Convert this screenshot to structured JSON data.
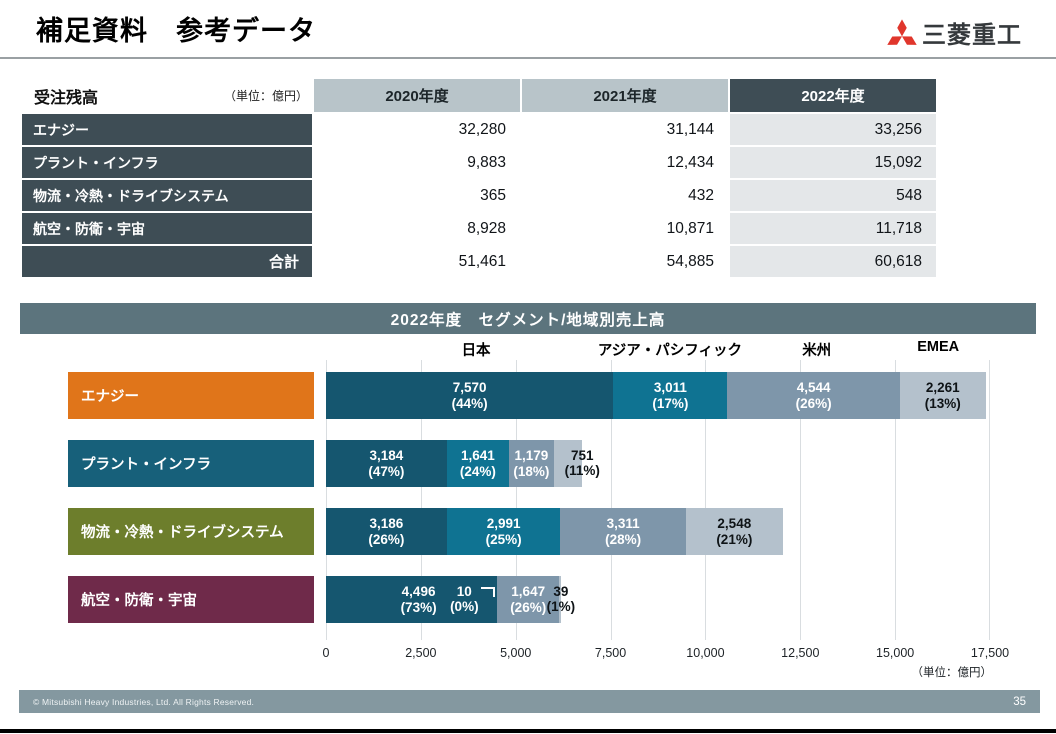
{
  "page": {
    "title": "補足資料　参考データ",
    "footer_copyright": "© Mitsubishi Heavy Industries, Ltd.  All Rights Reserved.",
    "page_number": "35"
  },
  "logo": {
    "brand_text": "三菱重工",
    "mark_color": "#e0362c"
  },
  "table": {
    "title": "受注残高",
    "unit_note": "（単位：億円）",
    "col_headers": [
      "2020年度",
      "2021年度",
      "2022年度"
    ],
    "rows": [
      {
        "label": "エナジー",
        "values": [
          "32,280",
          "31,144",
          "33,256"
        ]
      },
      {
        "label": "プラント・インフラ",
        "values": [
          "9,883",
          "12,434",
          "15,092"
        ]
      },
      {
        "label": "物流・冷熱・ドライブシステム",
        "values": [
          "365",
          "432",
          "548"
        ]
      },
      {
        "label": "航空・防衛・宇宙",
        "values": [
          "8,928",
          "10,871",
          "11,718"
        ]
      },
      {
        "label": "合計",
        "values": [
          "51,461",
          "54,885",
          "60,618"
        ]
      }
    ]
  },
  "chart_data": {
    "type": "bar",
    "variant": "horizontal-stacked",
    "title": "2022年度　セグメント/地域別売上高",
    "unit_note": "（単位：億円）",
    "xlim": [
      0,
      17500
    ],
    "x_ticks": [
      "0",
      "2,500",
      "5,000",
      "7,500",
      "10,000",
      "12,500",
      "15,000",
      "17,500"
    ],
    "grid": true,
    "regions": [
      {
        "label": "日本",
        "color": "#15566f",
        "header_center_pct": 22.6
      },
      {
        "label": "アジア・パシフィック",
        "color": "#0f7392",
        "header_center_pct": 51.8
      },
      {
        "label": "米州",
        "color": "#7e96aa",
        "header_center_pct": 73.9
      },
      {
        "label": "EMEA",
        "color": "#b4c1cc",
        "header_center_pct": 92.2
      }
    ],
    "rows": [
      {
        "segment": "エナジー",
        "label_bg": "#e0751a",
        "segments": [
          {
            "region": "日本",
            "value": 7570,
            "value_label": "7,570",
            "pct_label": "(44%)"
          },
          {
            "region": "アジア・パシフィック",
            "value": 3011,
            "value_label": "3,011",
            "pct_label": "(17%)"
          },
          {
            "region": "米州",
            "value": 4544,
            "value_label": "4,544",
            "pct_label": "(26%)"
          },
          {
            "region": "EMEA",
            "value": 2261,
            "value_label": "2,261",
            "pct_label": "(13%)"
          }
        ]
      },
      {
        "segment": "プラント・インフラ",
        "label_bg": "#17607a",
        "segments": [
          {
            "region": "日本",
            "value": 3184,
            "value_label": "3,184",
            "pct_label": "(47%)"
          },
          {
            "region": "アジア・パシフィック",
            "value": 1641,
            "value_label": "1,641",
            "pct_label": "(24%)"
          },
          {
            "region": "米州",
            "value": 1179,
            "value_label": "1,179",
            "pct_label": "(18%)"
          },
          {
            "region": "EMEA",
            "value": 751,
            "value_label": "751",
            "pct_label": "(11%)"
          }
        ]
      },
      {
        "segment": "物流・冷熱・ドライブシステム",
        "label_bg": "#6d7e2c",
        "segments": [
          {
            "region": "日本",
            "value": 3186,
            "value_label": "3,186",
            "pct_label": "(26%)"
          },
          {
            "region": "アジア・パシフィック",
            "value": 2991,
            "value_label": "2,991",
            "pct_label": "(25%)"
          },
          {
            "region": "米州",
            "value": 3311,
            "value_label": "3,311",
            "pct_label": "(28%)"
          },
          {
            "region": "EMEA",
            "value": 2548,
            "value_label": "2,548",
            "pct_label": "(21%)"
          }
        ]
      },
      {
        "segment": "航空・防衛・宇宙",
        "label_bg": "#6f2a4a",
        "segments": [
          {
            "region": "日本",
            "value": 4496,
            "value_label": "4,496",
            "pct_label": "(73%)"
          },
          {
            "region": "アジア・パシフィック",
            "value": 10,
            "value_label": "10",
            "pct_label": "(0%)"
          },
          {
            "region": "米州",
            "value": 1647,
            "value_label": "1,647",
            "pct_label": "(26%)"
          },
          {
            "region": "EMEA",
            "value": 39,
            "value_label": "39",
            "pct_label": "(1%)"
          }
        ]
      }
    ]
  }
}
